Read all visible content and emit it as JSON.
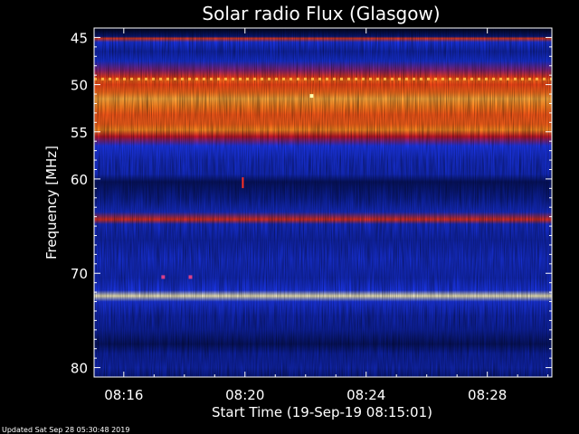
{
  "chart_data": {
    "type": "heatmap",
    "title": "Solar radio Flux (Glasgow)",
    "xlabel": "Start Time (19-Sep-19 08:15:01)",
    "ylabel": "Frequency [MHz]",
    "x_tick_labels": [
      "08:16",
      "08:20",
      "08:24",
      "08:28"
    ],
    "x_tick_minutes": [
      16,
      20,
      24,
      28
    ],
    "xlim_minutes": [
      15.02,
      30.13
    ],
    "y_tick_labels": [
      "45",
      "50",
      "55",
      "60",
      "70",
      "80"
    ],
    "y_tick_values": [
      45,
      50,
      55,
      60,
      70,
      80
    ],
    "ylim": [
      44,
      81
    ],
    "colormap": [
      "#000000",
      "#0a1c8c",
      "#1f3cff",
      "#c8162a",
      "#ff4a18",
      "#ff9c24",
      "#fff6c0"
    ],
    "frequency_profile": [
      {
        "mhz": 44.2,
        "level": 0.05
      },
      {
        "mhz": 44.9,
        "level": 0.15
      },
      {
        "mhz": 45.1,
        "level": 0.62
      },
      {
        "mhz": 45.5,
        "level": 0.3
      },
      {
        "mhz": 46.5,
        "level": 0.22
      },
      {
        "mhz": 47.5,
        "level": 0.28
      },
      {
        "mhz": 48.5,
        "level": 0.44
      },
      {
        "mhz": 49.2,
        "level": 0.62
      },
      {
        "mhz": 49.5,
        "level": 0.74
      },
      {
        "mhz": 50.0,
        "level": 0.66
      },
      {
        "mhz": 50.8,
        "level": 0.74
      },
      {
        "mhz": 51.5,
        "level": 0.86
      },
      {
        "mhz": 52.3,
        "level": 0.78
      },
      {
        "mhz": 53.2,
        "level": 0.7
      },
      {
        "mhz": 54.2,
        "level": 0.72
      },
      {
        "mhz": 54.8,
        "level": 0.8
      },
      {
        "mhz": 55.5,
        "level": 0.5
      },
      {
        "mhz": 56.5,
        "level": 0.32
      },
      {
        "mhz": 58.0,
        "level": 0.26
      },
      {
        "mhz": 59.5,
        "level": 0.24
      },
      {
        "mhz": 60.3,
        "level": 0.12
      },
      {
        "mhz": 62.0,
        "level": 0.18
      },
      {
        "mhz": 63.5,
        "level": 0.26
      },
      {
        "mhz": 64.3,
        "level": 0.58
      },
      {
        "mhz": 64.8,
        "level": 0.26
      },
      {
        "mhz": 66.5,
        "level": 0.22
      },
      {
        "mhz": 68.5,
        "level": 0.26
      },
      {
        "mhz": 70.5,
        "level": 0.24
      },
      {
        "mhz": 71.8,
        "level": 0.3
      },
      {
        "mhz": 72.4,
        "level": 1.0
      },
      {
        "mhz": 73.0,
        "level": 0.3
      },
      {
        "mhz": 74.5,
        "level": 0.22
      },
      {
        "mhz": 76.0,
        "level": 0.2
      },
      {
        "mhz": 77.5,
        "level": 0.12
      },
      {
        "mhz": 78.5,
        "level": 0.2
      },
      {
        "mhz": 80.0,
        "level": 0.22
      },
      {
        "mhz": 81.0,
        "level": 0.16
      }
    ],
    "features": [
      {
        "kind": "dashed-band",
        "mhz": 49.4,
        "color": "#ffb040"
      },
      {
        "kind": "spot",
        "minute": 22.2,
        "mhz": 51.2,
        "color": "#ffffb0"
      },
      {
        "kind": "spot",
        "minute": 17.3,
        "mhz": 70.4,
        "color": "#d8408a"
      },
      {
        "kind": "spot",
        "minute": 18.2,
        "mhz": 70.4,
        "color": "#d8408a"
      },
      {
        "kind": "streak",
        "minute": 19.9,
        "mhz": 60.4,
        "color": "#ff3020"
      }
    ],
    "grid": false,
    "legend": "none"
  },
  "footer": {
    "updated": "Updated Sat Sep 28 05:30:48 2019"
  }
}
